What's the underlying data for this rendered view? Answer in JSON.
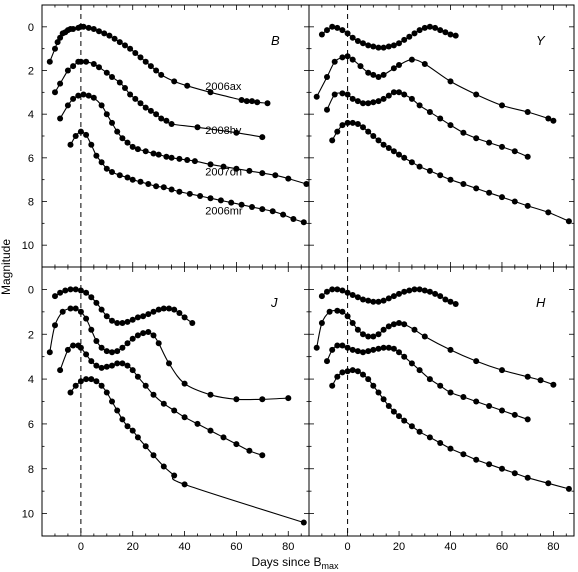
{
  "chart_data": {
    "type": "scatter",
    "xlabel": "Days since B",
    "xlabel_sub": "max",
    "ylabel": "Magnitude",
    "xlim": [
      -15,
      88
    ],
    "ylim": [
      11,
      -1
    ],
    "x_ticks": [
      "0",
      "20",
      "40",
      "60",
      "80"
    ],
    "y_ticks_top": [
      "0",
      "2",
      "4",
      "6",
      "8",
      "10"
    ],
    "y_ticks_bottom": [
      "0",
      "2",
      "4",
      "6",
      "8",
      "10"
    ],
    "panels": [
      {
        "band": "B",
        "supernova_labels": [
          "2006ax",
          "2008hv",
          "2007on",
          "2006mr"
        ],
        "series": [
          {
            "name": "2006ax",
            "x": [
              -12,
              -10,
              -9,
              -8,
              -7,
              -6,
              -5,
              -4,
              -3,
              -1,
              0,
              1,
              3,
              5,
              7,
              9,
              11,
              13,
              15,
              17,
              19,
              21,
              23,
              25,
              27,
              29,
              31,
              36,
              41,
              50,
              62,
              64,
              66,
              68,
              72
            ],
            "y": [
              1.6,
              1.0,
              0.7,
              0.5,
              0.3,
              0.25,
              0.15,
              0.1,
              0.1,
              0.05,
              0.0,
              0.0,
              0.05,
              0.1,
              0.2,
              0.3,
              0.4,
              0.55,
              0.7,
              0.85,
              1.0,
              1.2,
              1.4,
              1.6,
              1.8,
              2.0,
              2.2,
              2.5,
              2.7,
              3.0,
              3.35,
              3.4,
              3.4,
              3.45,
              3.5
            ]
          },
          {
            "name": "2008hv",
            "x": [
              -10,
              -8,
              -5,
              -3,
              -1,
              0,
              2,
              5,
              7,
              10,
              12,
              15,
              17,
              19,
              21,
              23,
              25,
              27,
              29,
              31,
              33,
              35,
              45,
              60,
              70
            ],
            "y": [
              3.0,
              2.6,
              2.0,
              1.8,
              1.6,
              1.6,
              1.6,
              1.7,
              1.85,
              2.1,
              2.3,
              2.55,
              2.8,
              3.1,
              3.3,
              3.5,
              3.7,
              3.85,
              4.0,
              4.2,
              4.3,
              4.45,
              4.6,
              4.85,
              5.05
            ]
          },
          {
            "name": "2007on",
            "x": [
              -8,
              -5,
              -3,
              -1,
              1,
              3,
              5,
              8,
              10,
              12,
              14,
              16,
              18,
              20,
              22,
              25,
              28,
              30,
              33,
              35,
              38,
              41,
              44,
              50,
              55,
              60,
              65,
              70,
              75,
              80,
              87
            ],
            "y": [
              4.2,
              3.6,
              3.3,
              3.15,
              3.1,
              3.15,
              3.25,
              3.6,
              4.0,
              4.4,
              4.8,
              5.1,
              5.3,
              5.5,
              5.6,
              5.7,
              5.8,
              5.85,
              5.95,
              6.0,
              6.05,
              6.1,
              6.15,
              6.3,
              6.4,
              6.5,
              6.6,
              6.7,
              6.8,
              6.95,
              7.2
            ]
          },
          {
            "name": "2006mr",
            "x": [
              -4,
              -2,
              0,
              2,
              4,
              6,
              8,
              10,
              12,
              15,
              18,
              20,
              23,
              26,
              29,
              32,
              35,
              38,
              42,
              46,
              50,
              54,
              58,
              62,
              66,
              70,
              74,
              78,
              82,
              86
            ],
            "y": [
              5.4,
              5.0,
              4.8,
              4.95,
              5.4,
              5.9,
              6.2,
              6.5,
              6.65,
              6.8,
              6.9,
              7.0,
              7.1,
              7.2,
              7.3,
              7.35,
              7.45,
              7.55,
              7.65,
              7.75,
              7.85,
              7.95,
              8.05,
              8.15,
              8.25,
              8.35,
              8.45,
              8.6,
              8.8,
              8.95
            ]
          }
        ]
      },
      {
        "band": "Y",
        "series": [
          {
            "name": "2006ax",
            "x": [
              -10,
              -8,
              -6,
              -4,
              -2,
              0,
              2,
              4,
              6,
              8,
              10,
              12,
              14,
              16,
              18,
              20,
              22,
              24,
              26,
              28,
              30,
              32,
              34,
              36,
              38,
              40,
              42
            ],
            "y": [
              0.35,
              0.15,
              0.0,
              0.05,
              0.15,
              0.3,
              0.5,
              0.65,
              0.75,
              0.85,
              0.9,
              0.95,
              0.95,
              0.9,
              0.85,
              0.75,
              0.6,
              0.45,
              0.3,
              0.15,
              0.05,
              0.0,
              0.05,
              0.15,
              0.25,
              0.35,
              0.4
            ]
          },
          {
            "name": "2008hv",
            "x": [
              -12,
              -8,
              -5,
              -2,
              0,
              2,
              5,
              8,
              10,
              12,
              14,
              18,
              20,
              25,
              30,
              40,
              50,
              60,
              70,
              78,
              80
            ],
            "y": [
              3.2,
              2.3,
              1.6,
              1.4,
              1.35,
              1.5,
              1.8,
              2.1,
              2.2,
              2.3,
              2.2,
              1.9,
              1.75,
              1.5,
              1.7,
              2.5,
              3.1,
              3.6,
              3.9,
              4.2,
              4.3
            ]
          },
          {
            "name": "2007on",
            "x": [
              -8,
              -5,
              -2,
              0,
              2,
              4,
              6,
              8,
              10,
              12,
              14,
              16,
              18,
              20,
              22,
              25,
              28,
              32,
              36,
              40,
              45,
              50,
              55,
              60,
              65,
              70
            ],
            "y": [
              3.8,
              3.1,
              3.05,
              3.1,
              3.3,
              3.4,
              3.5,
              3.5,
              3.45,
              3.4,
              3.3,
              3.15,
              3.0,
              3.0,
              3.1,
              3.3,
              3.6,
              3.9,
              4.2,
              4.5,
              4.85,
              5.1,
              5.3,
              5.5,
              5.7,
              5.95
            ]
          },
          {
            "name": "2006mr",
            "x": [
              -6,
              -4,
              -2,
              0,
              2,
              4,
              6,
              8,
              10,
              12,
              14,
              16,
              18,
              20,
              22,
              25,
              28,
              32,
              36,
              40,
              45,
              50,
              55,
              60,
              65,
              70,
              78,
              86
            ],
            "y": [
              5.2,
              4.8,
              4.5,
              4.4,
              4.4,
              4.45,
              4.6,
              4.8,
              5.0,
              5.2,
              5.4,
              5.55,
              5.7,
              5.85,
              6.0,
              6.2,
              6.4,
              6.6,
              6.8,
              7.0,
              7.2,
              7.4,
              7.6,
              7.8,
              8.0,
              8.2,
              8.5,
              8.9
            ]
          }
        ]
      },
      {
        "band": "J",
        "series": [
          {
            "name": "2006ax",
            "x": [
              -10,
              -8,
              -6,
              -4,
              -2,
              0,
              2,
              4,
              6,
              8,
              10,
              12,
              14,
              16,
              18,
              20,
              22,
              24,
              26,
              28,
              30,
              32,
              34,
              36,
              38,
              40,
              43
            ],
            "y": [
              0.3,
              0.15,
              0.05,
              0.0,
              0.0,
              0.05,
              0.15,
              0.35,
              0.6,
              0.9,
              1.2,
              1.4,
              1.5,
              1.5,
              1.45,
              1.35,
              1.25,
              1.2,
              1.1,
              1.0,
              0.9,
              0.85,
              0.85,
              0.9,
              1.05,
              1.25,
              1.5
            ]
          },
          {
            "name": "2008hv",
            "x": [
              -12,
              -10,
              -7,
              -4,
              -2,
              0,
              2,
              4,
              6,
              8,
              10,
              12,
              14,
              16,
              18,
              20,
              22,
              24,
              26,
              28,
              30,
              34,
              40,
              50,
              60,
              70,
              80
            ],
            "y": [
              2.8,
              1.6,
              1.0,
              0.85,
              0.85,
              1.0,
              1.3,
              1.8,
              2.3,
              2.6,
              2.75,
              2.8,
              2.75,
              2.6,
              2.4,
              2.2,
              2.05,
              1.95,
              1.9,
              2.05,
              2.4,
              3.3,
              4.2,
              4.7,
              4.9,
              4.9,
              4.85
            ]
          },
          {
            "name": "2007on",
            "x": [
              -8,
              -5,
              -3,
              -1,
              0,
              2,
              4,
              6,
              8,
              10,
              12,
              14,
              16,
              18,
              20,
              22,
              25,
              28,
              32,
              36,
              40,
              45,
              50,
              55,
              60,
              65,
              70
            ],
            "y": [
              3.6,
              2.7,
              2.5,
              2.5,
              2.6,
              2.9,
              3.2,
              3.4,
              3.5,
              3.45,
              3.4,
              3.3,
              3.3,
              3.4,
              3.6,
              3.9,
              4.3,
              4.7,
              5.1,
              5.4,
              5.7,
              6.0,
              6.3,
              6.6,
              6.9,
              7.2,
              7.4
            ]
          },
          {
            "name": "2006mr",
            "x": [
              -4,
              -2,
              0,
              2,
              4,
              6,
              8,
              10,
              12,
              14,
              16,
              18,
              20,
              22,
              25,
              28,
              32,
              36,
              40,
              86
            ],
            "y": [
              4.6,
              4.3,
              4.1,
              4.0,
              4.0,
              4.1,
              4.3,
              4.6,
              5.0,
              5.4,
              5.8,
              6.1,
              6.3,
              6.6,
              7.0,
              7.4,
              7.9,
              8.3,
              8.7,
              10.4
            ]
          }
        ]
      },
      {
        "band": "H",
        "series": [
          {
            "name": "2006ax",
            "x": [
              -10,
              -8,
              -6,
              -4,
              -2,
              0,
              2,
              4,
              6,
              8,
              10,
              12,
              14,
              16,
              18,
              20,
              22,
              24,
              26,
              28,
              30,
              32,
              34,
              36,
              38,
              40,
              42
            ],
            "y": [
              0.3,
              0.1,
              0.0,
              0.0,
              0.05,
              0.15,
              0.25,
              0.35,
              0.45,
              0.5,
              0.55,
              0.55,
              0.5,
              0.4,
              0.3,
              0.2,
              0.1,
              0.05,
              0.0,
              0.0,
              0.05,
              0.1,
              0.2,
              0.3,
              0.45,
              0.55,
              0.65
            ]
          },
          {
            "name": "2008hv",
            "x": [
              -12,
              -10,
              -7,
              -4,
              -2,
              0,
              2,
              4,
              6,
              8,
              10,
              12,
              14,
              16,
              18,
              20,
              22,
              26,
              30,
              40,
              50,
              60,
              70,
              75,
              80
            ],
            "y": [
              2.6,
              1.5,
              1.0,
              0.95,
              1.0,
              1.2,
              1.5,
              1.8,
              2.0,
              2.1,
              2.1,
              2.0,
              1.8,
              1.65,
              1.55,
              1.5,
              1.55,
              1.8,
              2.1,
              2.7,
              3.2,
              3.6,
              3.9,
              4.05,
              4.25
            ]
          },
          {
            "name": "2007on",
            "x": [
              -8,
              -6,
              -4,
              -2,
              0,
              2,
              4,
              6,
              8,
              10,
              12,
              14,
              16,
              18,
              20,
              22,
              25,
              28,
              32,
              36,
              40,
              45,
              50,
              55,
              60,
              65,
              70
            ],
            "y": [
              3.2,
              2.7,
              2.5,
              2.5,
              2.6,
              2.7,
              2.75,
              2.8,
              2.75,
              2.7,
              2.65,
              2.6,
              2.6,
              2.65,
              2.8,
              3.0,
              3.3,
              3.6,
              4.0,
              4.3,
              4.6,
              4.8,
              5.0,
              5.2,
              5.4,
              5.6,
              5.8
            ]
          },
          {
            "name": "2006mr",
            "x": [
              -6,
              -4,
              -2,
              0,
              2,
              4,
              6,
              8,
              10,
              12,
              14,
              16,
              18,
              20,
              22,
              25,
              28,
              32,
              36,
              40,
              45,
              50,
              55,
              60,
              65,
              70,
              78,
              86
            ],
            "y": [
              4.3,
              3.9,
              3.7,
              3.65,
              3.6,
              3.65,
              3.8,
              4.0,
              4.3,
              4.6,
              4.9,
              5.2,
              5.45,
              5.65,
              5.85,
              6.1,
              6.35,
              6.6,
              6.85,
              7.1,
              7.35,
              7.6,
              7.8,
              8.0,
              8.2,
              8.4,
              8.65,
              8.9
            ]
          }
        ]
      }
    ]
  }
}
